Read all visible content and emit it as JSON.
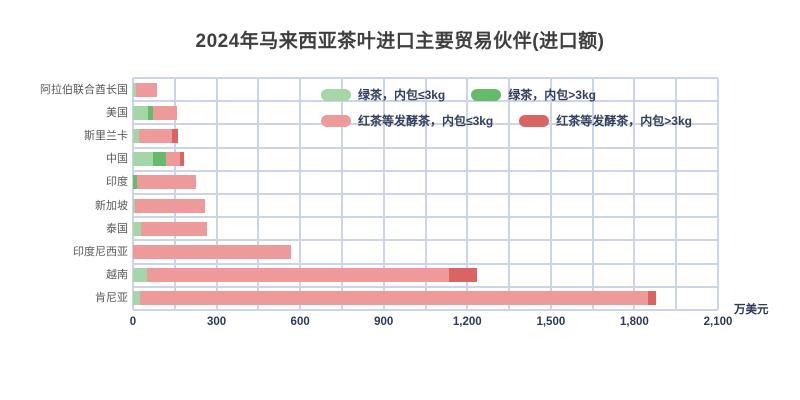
{
  "title": "2024年马来西亚茶叶进口主要贸易伙伴(进口额)",
  "chart_data": {
    "type": "bar",
    "orientation": "horizontal",
    "stacked": true,
    "title": "2024年马来西亚茶叶进口主要贸易伙伴(进口额)",
    "unit_label": "万美元",
    "categories": [
      "阿拉伯联合酋长国",
      "美国",
      "斯里兰卡",
      "中国",
      "印度",
      "新加坡",
      "泰国",
      "印度尼西亚",
      "越南",
      "肯尼亚"
    ],
    "series": [
      {
        "name": "绿茶，内包≤3kg",
        "color": "#a5d6a7",
        "values": [
          10,
          54,
          22,
          72,
          0,
          8,
          29,
          0,
          50,
          25
        ]
      },
      {
        "name": "绿茶，内包>3kg",
        "color": "#66bb6a",
        "values": [
          0,
          18,
          0,
          47,
          14,
          0,
          0,
          0,
          0,
          0
        ]
      },
      {
        "name": "红茶等发酵茶，内包≤3kg",
        "color": "#ef9a9a",
        "values": [
          76,
          86,
          119,
          50,
          212,
          251,
          237,
          568,
          1085,
          1825
        ]
      },
      {
        "name": "红茶等发酵茶，内包>3kg",
        "color": "#d96462",
        "values": [
          0,
          0,
          22,
          14,
          0,
          0,
          0,
          0,
          100,
          29
        ]
      }
    ],
    "totals": [
      86,
      158,
      163,
      183,
      226,
      259,
      266,
      568,
      1235,
      1879
    ],
    "xlim": [
      0,
      2100
    ],
    "x_ticks": [
      {
        "value": 0,
        "label": "0"
      },
      {
        "value": 300,
        "label": "300"
      },
      {
        "value": 600,
        "label": "600"
      },
      {
        "value": 900,
        "label": "900"
      },
      {
        "value": 1200,
        "label": "1,200"
      },
      {
        "value": 1500,
        "label": "1,500"
      },
      {
        "value": 1800,
        "label": "1,800"
      },
      {
        "value": 2100,
        "label": "2,100"
      }
    ],
    "minor_grid_step": 150,
    "grid_color": "#ccd4e8",
    "grid": true,
    "legend_position": "top-inside"
  }
}
